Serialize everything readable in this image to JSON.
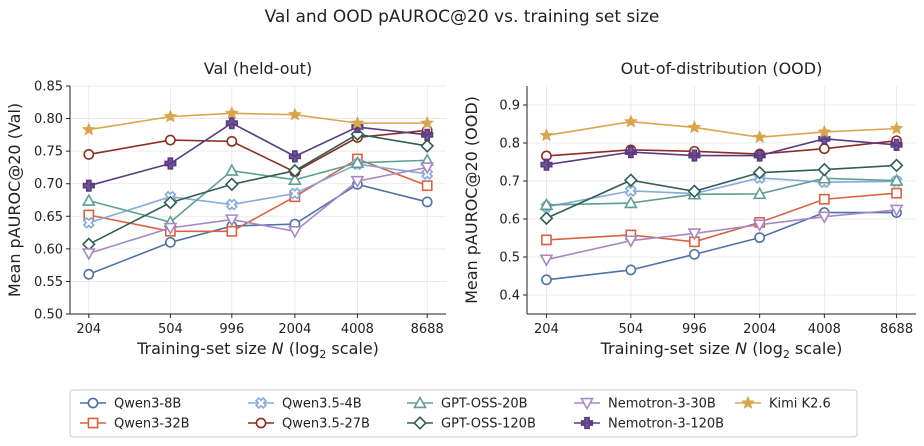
{
  "figure_title": "Val and OOD pAUROC@20 vs. training set size",
  "colors": {
    "Qwen3-8B": "#4c72a8",
    "Qwen3-32B": "#d9633f",
    "Qwen3.5-4B": "#86aadb",
    "Qwen3.5-27B": "#8c2d22",
    "GPT-OSS-20B": "#5f9e93",
    "GPT-OSS-120B": "#2f5f56",
    "Nemotron-3-30B": "#a887c6",
    "Nemotron-3-120B": "#5b3a84",
    "Kimi K2.6": "#d9a54e"
  },
  "markers": {
    "Qwen3-8B": "circle",
    "Qwen3-32B": "square",
    "Qwen3.5-4B": "x-filled",
    "Qwen3.5-27B": "circle",
    "GPT-OSS-20B": "triangle-up",
    "GPT-OSS-120B": "diamond",
    "Nemotron-3-30B": "triangle-down",
    "Nemotron-3-120B": "plus-filled",
    "Kimi K2.6": "star"
  },
  "legend": {
    "placement": "bottom-center",
    "entries": [
      "Qwen3-8B",
      "Qwen3-32B",
      "Qwen3.5-4B",
      "Qwen3.5-27B",
      "GPT-OSS-20B",
      "GPT-OSS-120B",
      "Nemotron-3-30B",
      "Nemotron-3-120B",
      "Kimi K2.6"
    ]
  },
  "chart_data": [
    {
      "type": "line",
      "title": "Val (held-out)",
      "xlabel_prefix": "Training-set size ",
      "xlabel_var": "N",
      "xlabel_suffix": " (log",
      "xlabel_sub": "2",
      "xlabel_end": " scale)",
      "ylabel": "Mean pAUROC@20 (Val)",
      "x": [
        204,
        504,
        996,
        2004,
        4008,
        8688
      ],
      "x_scale": "log2",
      "ylim": [
        0.5,
        0.85
      ],
      "yticks": [
        "0.50",
        "0.55",
        "0.60",
        "0.65",
        "0.70",
        "0.75",
        "0.80",
        "0.85"
      ],
      "grid": true,
      "series": [
        {
          "name": "Qwen3-8B",
          "values": [
            0.561,
            0.61,
            0.635,
            0.638,
            0.699,
            0.672
          ]
        },
        {
          "name": "Qwen3-32B",
          "values": [
            0.652,
            0.627,
            0.627,
            0.68,
            0.738,
            0.697
          ]
        },
        {
          "name": "Qwen3.5-4B",
          "values": [
            0.64,
            0.68,
            0.668,
            0.685,
            0.73,
            0.715
          ]
        },
        {
          "name": "Qwen3.5-27B",
          "values": [
            0.745,
            0.767,
            0.765,
            0.718,
            0.771,
            0.782
          ]
        },
        {
          "name": "GPT-OSS-20B",
          "values": [
            0.674,
            0.641,
            0.72,
            0.706,
            0.732,
            0.736
          ]
        },
        {
          "name": "GPT-OSS-120B",
          "values": [
            0.607,
            0.671,
            0.699,
            0.72,
            0.776,
            0.758
          ]
        },
        {
          "name": "Nemotron-3-30B",
          "values": [
            0.593,
            0.632,
            0.645,
            0.627,
            0.704,
            0.725
          ]
        },
        {
          "name": "Nemotron-3-120B",
          "values": [
            0.697,
            0.731,
            0.793,
            0.742,
            0.787,
            0.775
          ]
        },
        {
          "name": "Kimi K2.6",
          "values": [
            0.783,
            0.803,
            0.808,
            0.806,
            0.793,
            0.793
          ]
        }
      ]
    },
    {
      "type": "line",
      "title": "Out-of-distribution (OOD)",
      "xlabel_prefix": "Training-set size ",
      "xlabel_var": "N",
      "xlabel_suffix": " (log",
      "xlabel_sub": "2",
      "xlabel_end": " scale)",
      "ylabel": "Mean pAUROC@20 (OOD)",
      "x": [
        204,
        504,
        996,
        2004,
        4008,
        8688
      ],
      "x_scale": "log2",
      "ylim": [
        0.35,
        0.95
      ],
      "yticks": [
        "0.4",
        "0.5",
        "0.6",
        "0.7",
        "0.8",
        "0.9"
      ],
      "grid": true,
      "series": [
        {
          "name": "Qwen3-8B",
          "values": [
            0.44,
            0.466,
            0.507,
            0.551,
            0.617,
            0.617
          ]
        },
        {
          "name": "Qwen3-32B",
          "values": [
            0.545,
            0.558,
            0.54,
            0.591,
            0.652,
            0.668
          ]
        },
        {
          "name": "Qwen3.5-4B",
          "values": [
            0.632,
            0.674,
            0.667,
            0.708,
            0.697,
            0.699
          ]
        },
        {
          "name": "Qwen3.5-27B",
          "values": [
            0.766,
            0.782,
            0.778,
            0.771,
            0.785,
            0.806
          ]
        },
        {
          "name": "GPT-OSS-20B",
          "values": [
            0.637,
            0.642,
            0.665,
            0.666,
            0.707,
            0.701
          ]
        },
        {
          "name": "GPT-OSS-120B",
          "values": [
            0.602,
            0.702,
            0.673,
            0.722,
            0.73,
            0.741
          ]
        },
        {
          "name": "Nemotron-3-30B",
          "values": [
            0.493,
            0.543,
            0.562,
            0.585,
            0.606,
            0.624
          ]
        },
        {
          "name": "Nemotron-3-120B",
          "values": [
            0.743,
            0.776,
            0.767,
            0.767,
            0.811,
            0.795
          ]
        },
        {
          "name": "Kimi K2.6",
          "values": [
            0.82,
            0.856,
            0.841,
            0.815,
            0.829,
            0.838
          ]
        }
      ]
    }
  ]
}
